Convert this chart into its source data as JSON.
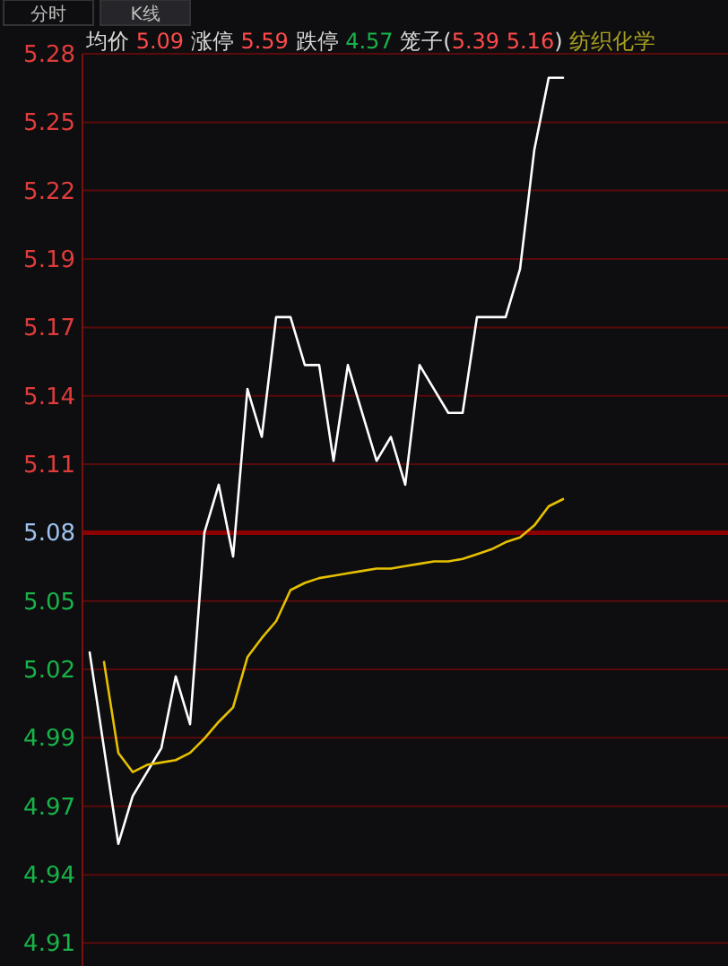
{
  "chart_data": {
    "type": "line",
    "title": "均价 5.09 涨停 5.59 跌停 4.57 笼子(5.39 5.16) 纺织化学",
    "annotations": [
      "分时",
      "K线"
    ],
    "categories": [
      null,
      null,
      null,
      null,
      null,
      null,
      null,
      null,
      null,
      null,
      null,
      null,
      null,
      null,
      null,
      null,
      null,
      null,
      null,
      null,
      null,
      null,
      null,
      null,
      null,
      null,
      null,
      null,
      null,
      null,
      null,
      null,
      null,
      null,
      null,
      null,
      null,
      null,
      null,
      null,
      null,
      null,
      null,
      null,
      null
    ],
    "series": [
      {
        "color": "#ffffff",
        "values": [
          5.03,
          4.99,
          4.95,
          4.97,
          4.98,
          4.99,
          5.02,
          5.0,
          5.08,
          5.1,
          5.07,
          5.14,
          5.12,
          5.17,
          5.17,
          5.15,
          5.15,
          5.11,
          5.15,
          5.13,
          5.11,
          5.12,
          5.1,
          5.15,
          5.14,
          5.13,
          5.13,
          5.17,
          5.17,
          5.17,
          5.19,
          5.24,
          5.27,
          5.27,
          null,
          null,
          null,
          null,
          null,
          null,
          null,
          null,
          null,
          null,
          null
        ]
      },
      {
        "color": "#e6c000",
        "values": [
          null,
          5.026,
          4.988,
          4.98,
          4.983,
          4.984,
          4.985,
          4.988,
          4.994,
          5.001,
          5.007,
          5.028,
          5.036,
          5.043,
          5.056,
          5.059,
          5.061,
          5.062,
          5.063,
          5.064,
          5.065,
          5.065,
          5.066,
          5.067,
          5.068,
          5.068,
          5.069,
          5.071,
          5.073,
          5.076,
          5.078,
          5.083,
          5.091,
          5.094,
          null,
          null,
          null,
          null,
          null,
          null,
          null,
          null,
          null,
          null,
          null
        ]
      }
    ],
    "ylim": [
      4.899,
      5.28
    ],
    "yticks": [
      {
        "value": 4.9086,
        "label": "4.91"
      },
      {
        "value": 4.9371,
        "label": "4.94"
      },
      {
        "value": 4.9657,
        "label": "4.97"
      },
      {
        "value": 4.9943,
        "label": "4.99"
      },
      {
        "value": 5.0229,
        "label": "5.02"
      },
      {
        "value": 5.0514,
        "label": "5.05"
      },
      {
        "value": 5.08,
        "label": "5.08"
      },
      {
        "value": 5.1086,
        "label": "5.11"
      },
      {
        "value": 5.1371,
        "label": "5.14"
      },
      {
        "value": 5.1657,
        "label": "5.17"
      },
      {
        "value": 5.1943,
        "label": "5.19"
      },
      {
        "value": 5.2229,
        "label": "5.22"
      },
      {
        "value": 5.2514,
        "label": "5.25"
      },
      {
        "value": 5.28,
        "label": "5.28"
      }
    ],
    "ref_lines": [
      {
        "axis": "y",
        "value": 5.08,
        "color": "#8b0000"
      }
    ],
    "grid": "y",
    "tick_labels": "y",
    "marker": "none",
    "line_style": "solid"
  }
}
